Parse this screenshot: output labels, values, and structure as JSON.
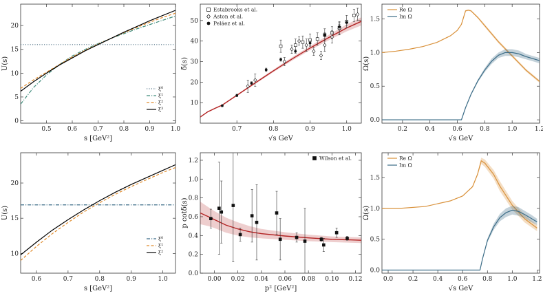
{
  "figure": {
    "panels": 6,
    "layout": "2x3"
  },
  "chart_data": [
    {
      "panel": "top-left",
      "type": "line",
      "xlabel": "s [GeV²]",
      "ylabel": "U(s)",
      "xlim": [
        0.4,
        1.0
      ],
      "ylim": [
        -0.5,
        24.5
      ],
      "xticks": [
        0.5,
        0.6,
        0.7,
        0.8,
        0.9,
        1.0
      ],
      "yticks": [
        0,
        5,
        10,
        15,
        20
      ],
      "xtick_labels": [
        "0.5",
        "0.6",
        "0.7",
        "0.8",
        "0.9",
        "1.0"
      ],
      "ytick_labels": [
        "0",
        "5",
        "10",
        "15",
        "20"
      ],
      "legend_position": "bottom-right",
      "series": [
        {
          "name": "ξ⁰",
          "color": "#5a7a8c",
          "dash": "dotted",
          "x": [
            0.4,
            1.0
          ],
          "y": [
            16.0,
            16.0
          ]
        },
        {
          "name": "ξ¹",
          "color": "#3d8b7a",
          "dash": "dashdot",
          "x": [
            0.4,
            0.45,
            0.5,
            0.55,
            0.6,
            0.65,
            0.7,
            0.75,
            0.8,
            0.85,
            0.9,
            0.95,
            1.0
          ],
          "y": [
            3.5,
            7.0,
            9.6,
            11.8,
            13.6,
            15.0,
            16.2,
            17.3,
            18.3,
            19.3,
            20.2,
            21.1,
            22.0
          ]
        },
        {
          "name": "ξ²",
          "color": "#e08a2a",
          "dash": "dashed",
          "x": [
            0.4,
            0.45,
            0.5,
            0.55,
            0.6,
            0.65,
            0.7,
            0.75,
            0.8,
            0.85,
            0.9,
            0.95,
            1.0
          ],
          "y": [
            6.8,
            8.6,
            10.2,
            11.8,
            13.4,
            14.8,
            16.1,
            17.3,
            18.5,
            19.6,
            20.7,
            21.7,
            22.6
          ]
        },
        {
          "name": "ξ³",
          "color": "#000000",
          "dash": "solid",
          "x": [
            0.4,
            0.45,
            0.5,
            0.55,
            0.6,
            0.65,
            0.7,
            0.75,
            0.8,
            0.85,
            0.9,
            0.95,
            1.0
          ],
          "y": [
            6.2,
            8.2,
            10.0,
            11.7,
            13.2,
            14.7,
            16.0,
            17.3,
            18.6,
            19.8,
            21.0,
            22.1,
            23.2
          ]
        }
      ]
    },
    {
      "panel": "top-middle",
      "type": "line",
      "xlabel": "√s  GeV",
      "ylabel": "δ̃(s)",
      "xlim": [
        0.6,
        1.04
      ],
      "ylim": [
        0,
        58
      ],
      "xticks": [
        0.7,
        0.8,
        0.9,
        1.0
      ],
      "yticks": [
        10,
        20,
        30,
        40,
        50
      ],
      "xtick_labels": [
        "0.7",
        "0.8",
        "0.9",
        "1.0"
      ],
      "ytick_labels": [
        "10",
        "20",
        "30",
        "40",
        "50"
      ],
      "legend_position": "top-left",
      "band": {
        "color": "#b22222",
        "x": [
          0.6,
          0.62,
          0.64,
          0.66,
          0.7,
          0.75,
          0.8,
          0.85,
          0.9,
          0.95,
          1.0,
          1.04
        ],
        "y": [
          3.0,
          5.5,
          7.2,
          8.8,
          13.6,
          19.6,
          25.5,
          31.2,
          36.6,
          41.6,
          46.4,
          49.6
        ],
        "err": [
          0.3,
          0.3,
          0.3,
          0.3,
          0.4,
          0.5,
          0.6,
          0.8,
          1.0,
          1.3,
          1.7,
          2.0
        ]
      },
      "points": [
        {
          "name": "Estabrooks et al.",
          "marker": "square",
          "x": [
            0.82,
            0.86,
            0.88,
            0.9,
            0.92,
            0.94,
            0.96,
            0.98,
            1.0,
            1.02
          ],
          "y": [
            37.5,
            38.0,
            39.5,
            40.5,
            41.0,
            43.0,
            44.0,
            46.5,
            49.5,
            52.5
          ],
          "err": [
            3,
            3,
            3,
            3,
            3,
            3,
            3,
            3,
            3,
            3
          ]
        },
        {
          "name": "Aston et al.",
          "marker": "diamond",
          "x": [
            0.73,
            0.75,
            0.83,
            0.85,
            0.87,
            0.89,
            0.91,
            0.93,
            0.94,
            0.96,
            0.98,
            1.03
          ],
          "y": [
            18.0,
            21.0,
            30.0,
            36.0,
            40.0,
            38.0,
            35.0,
            33.0,
            38.0,
            42.0,
            46.0,
            53.0
          ],
          "err": [
            3,
            3,
            2,
            2,
            2,
            3,
            2,
            2,
            3,
            3,
            3,
            3
          ]
        },
        {
          "name": "Peláez et al.",
          "marker": "circle",
          "x": [
            0.66,
            0.7,
            0.74,
            0.78,
            0.82,
            0.86,
            0.9,
            0.94,
            0.98,
            1.0
          ],
          "y": [
            8.5,
            13.5,
            19.5,
            26.0,
            31.0,
            35.0,
            39.0,
            43.0,
            47.0,
            49.0
          ],
          "err": [
            0.5,
            0.6,
            0.7,
            0.8,
            0.8,
            0.9,
            1.0,
            1.0,
            1.2,
            1.2
          ]
        }
      ]
    },
    {
      "panel": "top-right",
      "type": "line",
      "xlabel": "√s  GeV",
      "ylabel": "Ω(s)",
      "xlim": [
        0.05,
        1.2
      ],
      "ylim": [
        -0.05,
        1.72
      ],
      "xticks": [
        0.2,
        0.4,
        0.6,
        0.8,
        1.0,
        1.2
      ],
      "yticks": [
        0.0,
        0.5,
        1.0,
        1.5
      ],
      "xtick_labels": [
        "0.2",
        "0.4",
        "0.6",
        "0.8",
        "1.0",
        "1.2"
      ],
      "ytick_labels": [
        "0.0",
        "0.5",
        "1.0",
        "1.5"
      ],
      "legend_position": "top-left",
      "series": [
        {
          "name": "Re Ω",
          "color": "#d9913a",
          "x": [
            0.05,
            0.15,
            0.25,
            0.35,
            0.45,
            0.55,
            0.6,
            0.63,
            0.66,
            0.68,
            0.7,
            0.75,
            0.8,
            0.9,
            1.0,
            1.1,
            1.2
          ],
          "y": [
            1.0,
            1.02,
            1.05,
            1.09,
            1.15,
            1.25,
            1.33,
            1.42,
            1.62,
            1.63,
            1.62,
            1.52,
            1.4,
            1.16,
            0.95,
            0.74,
            0.57
          ],
          "err": [
            0,
            0,
            0,
            0,
            0,
            0,
            0,
            0,
            0.01,
            0.01,
            0.01,
            0.015,
            0.02,
            0.02,
            0.02,
            0.02,
            0.02
          ]
        },
        {
          "name": "Im Ω",
          "color": "#3a6b86",
          "x": [
            0.05,
            0.3,
            0.5,
            0.63,
            0.66,
            0.7,
            0.75,
            0.8,
            0.85,
            0.9,
            0.95,
            1.0,
            1.05,
            1.1,
            1.2
          ],
          "y": [
            0,
            0,
            0,
            0,
            0.18,
            0.38,
            0.58,
            0.74,
            0.87,
            0.96,
            1.0,
            1.0,
            0.98,
            0.94,
            0.88
          ],
          "err": [
            0,
            0,
            0,
            0,
            0.01,
            0.015,
            0.02,
            0.03,
            0.04,
            0.04,
            0.05,
            0.05,
            0.05,
            0.04,
            0.04
          ]
        }
      ]
    },
    {
      "panel": "bottom-left",
      "type": "line",
      "xlabel": "s [GeV²]",
      "ylabel": "U(s)",
      "xlim": [
        0.55,
        1.04
      ],
      "ylim": [
        7.2,
        24.3
      ],
      "xticks": [
        0.6,
        0.7,
        0.8,
        0.9,
        1.0
      ],
      "yticks": [
        10,
        15,
        20
      ],
      "xtick_labels": [
        "0.6",
        "0.7",
        "0.8",
        "0.9",
        "1.0"
      ],
      "ytick_labels": [
        "10",
        "15",
        "20"
      ],
      "legend_position": "bottom-right",
      "series": [
        {
          "name": "ξ⁰",
          "color": "#3a6b86",
          "dash": "dashdot",
          "x": [
            0.55,
            1.04
          ],
          "y": [
            16.9,
            16.9
          ]
        },
        {
          "name": "ξ¹",
          "color": "#e08a2a",
          "dash": "dashed",
          "x": [
            0.55,
            0.6,
            0.65,
            0.7,
            0.75,
            0.8,
            0.85,
            0.9,
            0.95,
            1.0,
            1.04
          ],
          "y": [
            9.0,
            11.0,
            12.8,
            14.4,
            15.9,
            17.2,
            18.4,
            19.5,
            20.5,
            21.5,
            22.2
          ]
        },
        {
          "name": "ξ²",
          "color": "#000000",
          "dash": "solid",
          "x": [
            0.55,
            0.6,
            0.65,
            0.7,
            0.75,
            0.8,
            0.85,
            0.9,
            0.95,
            1.0,
            1.04
          ],
          "y": [
            9.8,
            11.6,
            13.3,
            14.8,
            16.2,
            17.5,
            18.7,
            19.8,
            20.8,
            21.8,
            22.6
          ]
        }
      ]
    },
    {
      "panel": "bottom-middle",
      "type": "line",
      "xlabel": "p² [GeV²]",
      "ylabel": "p cotδ(s)",
      "xlim": [
        -0.012,
        0.125
      ],
      "ylim": [
        0,
        1.28
      ],
      "xticks": [
        0.0,
        0.02,
        0.04,
        0.06,
        0.08,
        0.1,
        0.12
      ],
      "yticks": [
        0.0,
        0.2,
        0.4,
        0.6,
        0.8,
        1.0,
        1.2
      ],
      "xtick_labels": [
        "0.00",
        "0.02",
        "0.04",
        "0.06",
        "0.08",
        "0.10",
        "0.12"
      ],
      "ytick_labels": [
        "0.0",
        "0.2",
        "0.4",
        "0.6",
        "0.8",
        "1.0",
        "1.2"
      ],
      "legend_position": "top-right",
      "band": {
        "color": "#b22222",
        "x": [
          -0.012,
          -0.005,
          0.0,
          0.01,
          0.02,
          0.03,
          0.04,
          0.06,
          0.08,
          0.1,
          0.125
        ],
        "y": [
          0.64,
          0.6,
          0.57,
          0.51,
          0.47,
          0.44,
          0.42,
          0.395,
          0.375,
          0.36,
          0.35
        ],
        "err": [
          0.12,
          0.1,
          0.09,
          0.08,
          0.07,
          0.06,
          0.05,
          0.04,
          0.035,
          0.03,
          0.03
        ]
      },
      "points": [
        {
          "name": "Wilson et al.",
          "marker": "square",
          "x": [
            -0.003,
            0.004,
            0.006,
            0.016,
            0.022,
            0.032,
            0.036,
            0.053,
            0.056,
            0.07,
            0.077,
            0.091,
            0.093,
            0.104,
            0.113
          ],
          "y": [
            0.58,
            0.69,
            0.65,
            0.72,
            0.41,
            0.61,
            0.54,
            0.64,
            0.36,
            0.38,
            0.34,
            0.36,
            0.3,
            0.43,
            0.37
          ],
          "err": [
            0.1,
            0.49,
            0.33,
            0.6,
            0.07,
            0.28,
            0.4,
            0.23,
            0.22,
            0.05,
            0.35,
            0.02,
            0.07,
            0.05,
            0.02
          ]
        }
      ]
    },
    {
      "panel": "bottom-right",
      "type": "line",
      "xlabel": "√s  GeV",
      "ylabel": "Ω(s)",
      "xlim": [
        -0.05,
        1.22
      ],
      "ylim": [
        -0.05,
        1.9
      ],
      "xticks": [
        0.0,
        0.2,
        0.4,
        0.6,
        0.8,
        1.0,
        1.2
      ],
      "yticks": [
        0.0,
        0.5,
        1.0,
        1.5
      ],
      "xtick_labels": [
        "0.0",
        "0.2",
        "0.4",
        "0.6",
        "0.8",
        "1.0",
        "1.2"
      ],
      "ytick_labels": [
        "0.0",
        "0.5",
        "1.0",
        "1.5"
      ],
      "legend_position": "top-left",
      "series": [
        {
          "name": "Re Ω",
          "color": "#d9913a",
          "x": [
            -0.05,
            0.1,
            0.3,
            0.5,
            0.6,
            0.68,
            0.72,
            0.75,
            0.78,
            0.85,
            0.9,
            1.0,
            1.1,
            1.2
          ],
          "y": [
            1.0,
            1.0,
            1.03,
            1.12,
            1.2,
            1.35,
            1.55,
            1.77,
            1.73,
            1.55,
            1.36,
            1.05,
            0.83,
            0.68
          ],
          "err": [
            0,
            0,
            0,
            0,
            0,
            0.01,
            0.02,
            0.05,
            0.06,
            0.07,
            0.08,
            0.07,
            0.06,
            0.05
          ]
        },
        {
          "name": "Im Ω",
          "color": "#3a6b86",
          "x": [
            -0.05,
            0.3,
            0.6,
            0.74,
            0.76,
            0.8,
            0.85,
            0.9,
            0.95,
            1.0,
            1.05,
            1.1,
            1.15,
            1.2
          ],
          "y": [
            0,
            0,
            0,
            0,
            0.18,
            0.48,
            0.7,
            0.85,
            0.93,
            0.97,
            0.95,
            0.9,
            0.84,
            0.78
          ],
          "err": [
            0,
            0,
            0,
            0,
            0.01,
            0.03,
            0.05,
            0.06,
            0.07,
            0.07,
            0.07,
            0.06,
            0.06,
            0.05
          ]
        }
      ]
    }
  ]
}
